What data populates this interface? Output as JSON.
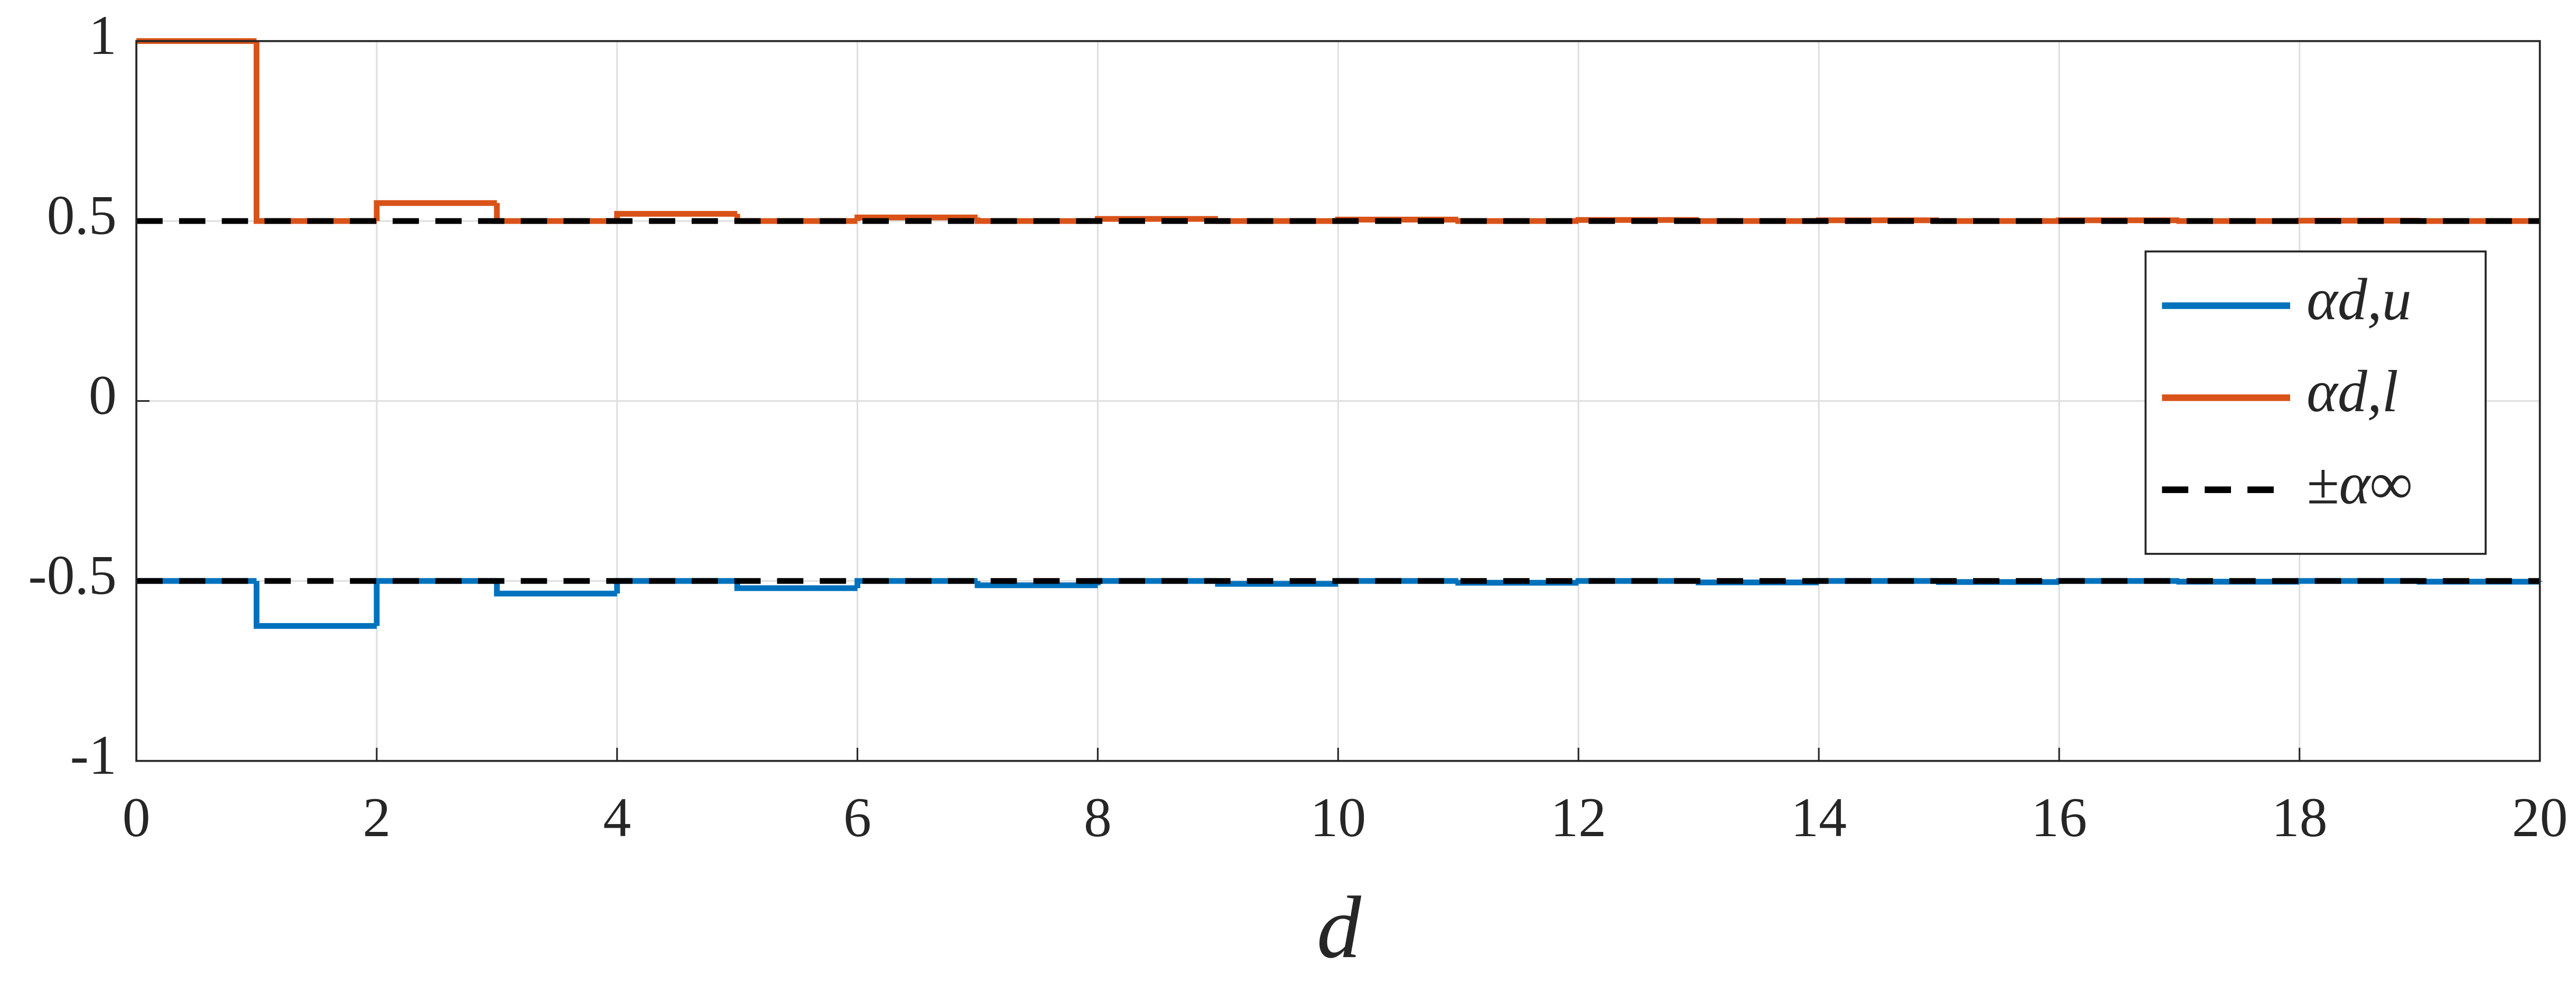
{
  "chart_data": {
    "type": "stairs",
    "x_label": "d",
    "x": [
      0,
      1,
      2,
      3,
      4,
      5,
      6,
      7,
      8,
      9,
      10,
      11,
      12,
      13,
      14,
      15,
      16,
      17,
      18,
      19,
      20
    ],
    "series": [
      {
        "name": "αd,u",
        "color": "#0072bd",
        "values": [
          -0.5,
          -0.625,
          -0.5,
          -0.535,
          -0.5,
          -0.52,
          -0.5,
          -0.512,
          -0.5,
          -0.508,
          -0.5,
          -0.505,
          -0.5,
          -0.504,
          -0.5,
          -0.503,
          -0.5,
          -0.502,
          -0.5,
          -0.502,
          -0.5
        ]
      },
      {
        "name": "αd,l",
        "color": "#d95319",
        "values": [
          1,
          0.5,
          0.55,
          0.5,
          0.52,
          0.5,
          0.51,
          0.5,
          0.506,
          0.5,
          0.504,
          0.5,
          0.503,
          0.5,
          0.502,
          0.5,
          0.502,
          0.5,
          0.501,
          0.5,
          0.5
        ]
      }
    ],
    "reference_lines": {
      "name": "±α∞",
      "color": "#000000",
      "values": [
        0.5,
        -0.5
      ]
    },
    "xlim": [
      0,
      20
    ],
    "xticks": [
      0,
      2,
      4,
      6,
      8,
      10,
      12,
      14,
      16,
      18,
      20
    ],
    "ylim": [
      -1,
      1
    ],
    "yticks": [
      -1,
      -0.5,
      0,
      0.5,
      1
    ],
    "grid": true,
    "legend_position": "right"
  }
}
